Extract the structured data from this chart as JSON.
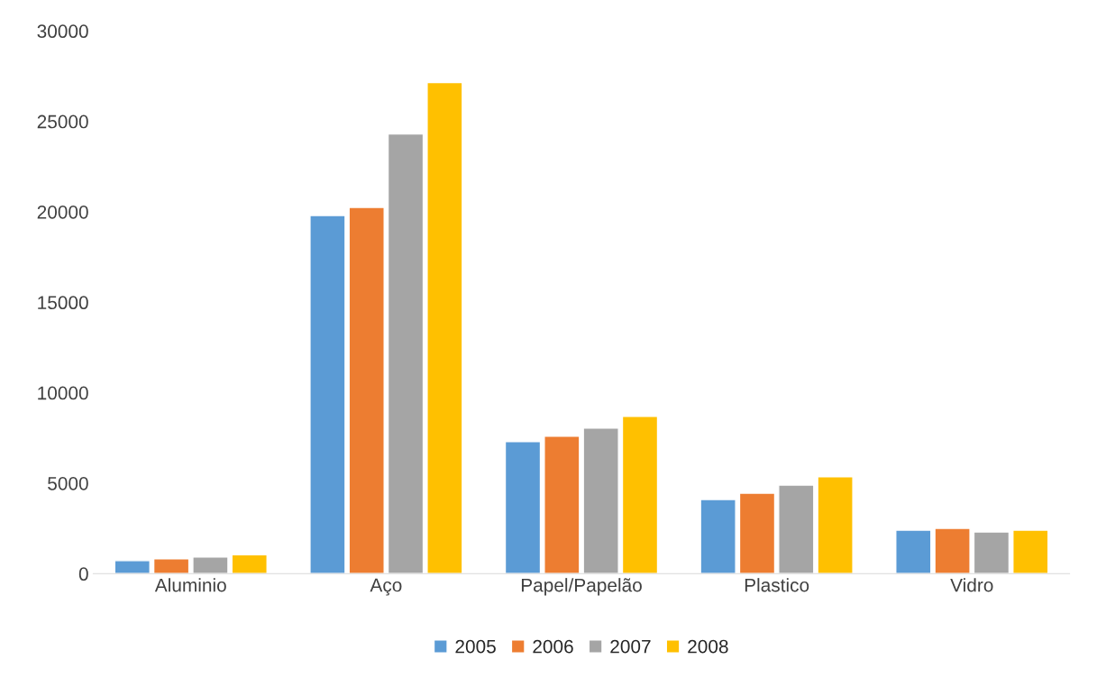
{
  "chart_data": {
    "type": "bar",
    "categories": [
      "Aluminio",
      "Aço",
      "Papel/Papelão",
      "Plastico",
      "Vidro"
    ],
    "series": [
      {
        "name": "2005",
        "color": "#5b9bd5",
        "values": [
          720,
          19800,
          7300,
          4100,
          2400
        ]
      },
      {
        "name": "2006",
        "color": "#ed7d31",
        "values": [
          820,
          20250,
          7600,
          4450,
          2500
        ]
      },
      {
        "name": "2007",
        "color": "#a5a5a5",
        "values": [
          920,
          24300,
          8050,
          4900,
          2300
        ]
      },
      {
        "name": "2008",
        "color": "#ffc000",
        "values": [
          1050,
          27150,
          8700,
          5350,
          2400
        ]
      }
    ],
    "ylim": [
      0,
      30000
    ],
    "yticks": [
      0,
      5000,
      10000,
      15000,
      20000,
      25000,
      30000
    ],
    "grid": false,
    "legend": "bottom"
  }
}
